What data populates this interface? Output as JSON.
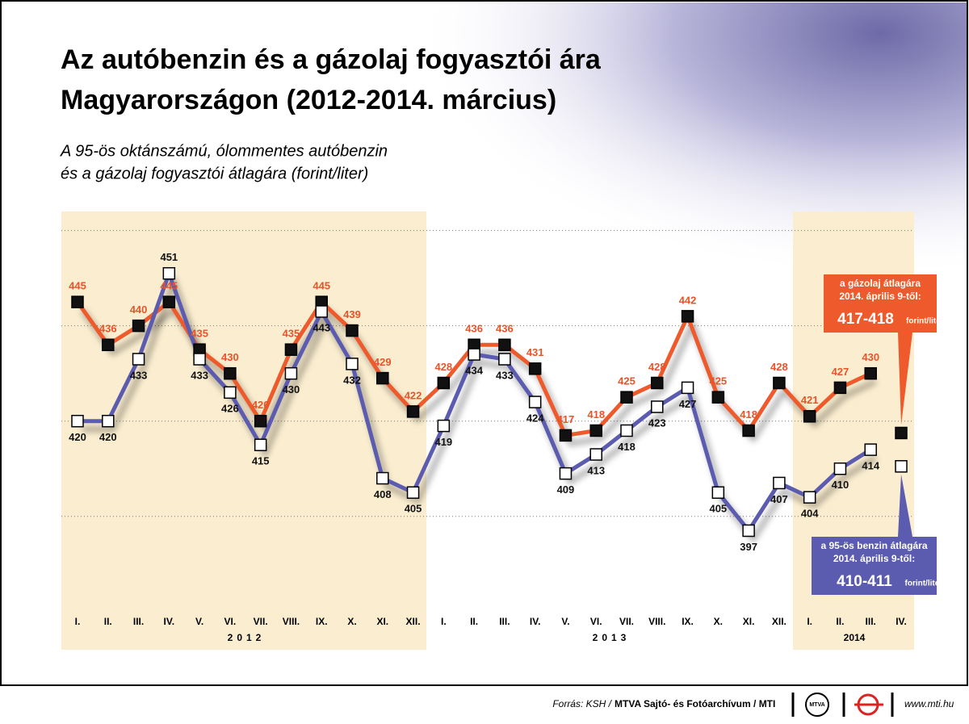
{
  "chart_data": {
    "type": "line",
    "title": [
      "Az autóbenzin és a gázolaj fogyasztói ára",
      "Magyarországon (2012-2014. március)"
    ],
    "subtitle": [
      "A 95-ös oktánszámú, ólommentes autóbenzin",
      "és a gázolaj fogyasztói átlagára (forint/liter)"
    ],
    "categories": [
      "I.",
      "II.",
      "III.",
      "IV.",
      "V.",
      "VI.",
      "VII.",
      "VIII.",
      "IX.",
      "X.",
      "XI.",
      "XII.",
      "I.",
      "II.",
      "III.",
      "IV.",
      "V.",
      "VI.",
      "VII.",
      "VIII.",
      "IX.",
      "X.",
      "XI.",
      "XII.",
      "I.",
      "II.",
      "III.",
      "IV."
    ],
    "years": [
      "2012",
      "2013",
      "2014"
    ],
    "series": [
      {
        "color": "#ee5a2c",
        "marker": "#111111",
        "label_color": "#e8542a",
        "values": [
          445,
          436,
          440,
          445,
          435,
          430,
          420,
          435,
          445,
          439,
          429,
          422,
          428,
          436,
          436,
          431,
          417,
          418,
          425,
          428,
          442,
          425,
          418,
          428,
          421,
          427,
          430,
          null
        ]
      },
      {
        "color": "#5b5bb0",
        "marker": "#ffffff",
        "label_color": "#111111",
        "values": [
          420,
          420,
          433,
          451,
          433,
          426,
          415,
          430,
          443,
          432,
          408,
          405,
          419,
          434,
          433,
          424,
          409,
          413,
          418,
          423,
          427,
          405,
          397,
          407,
          404,
          410,
          414,
          null
        ]
      }
    ],
    "ylim": [
      382,
      464
    ],
    "gridlines": [
      400,
      420,
      440,
      460
    ],
    "callouts": [
      {
        "lines": [
          "a gázolaj átlagára",
          "2014. április 9-től:"
        ],
        "low": 417,
        "high": 418,
        "range_label": "417-418",
        "unit": "forint/liter",
        "color": "#ee5a2c"
      },
      {
        "lines": [
          "a 95-ös benzin átlagára",
          "2014. április 9-től:"
        ],
        "low": 410,
        "high": 411,
        "range_label": "410-411",
        "unit": "forint/liter",
        "color": "#5b5bb0"
      }
    ]
  },
  "footer": {
    "source_prefix": "Forrás: KSH /",
    "source": "MTVA Sajtó- és Fotóarchívum / MTI",
    "logo_text": "MTVA",
    "url": "www.mti.hu"
  }
}
